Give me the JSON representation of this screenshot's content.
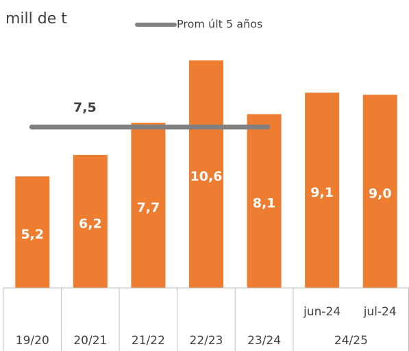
{
  "chart_data": {
    "type": "bar",
    "y_label": "mill de t",
    "categories": [
      "19/20",
      "20/21",
      "21/22",
      "22/23",
      "23/24",
      "jun-24",
      "jul-24"
    ],
    "category_groups": [
      {
        "label": "24/25",
        "count": 2
      }
    ],
    "values": [
      5.2,
      6.2,
      7.7,
      10.6,
      8.1,
      9.1,
      9.0
    ],
    "value_labels": [
      "5,2",
      "6,2",
      "7,7",
      "10,6",
      "8,1",
      "9,1",
      "9,0"
    ],
    "color": "#ed7d31",
    "ylim": [
      0,
      12
    ],
    "reference_line": {
      "name": "Prom últ 5 años",
      "value": 7.5,
      "value_label": "7,5",
      "color": "#808080"
    }
  }
}
